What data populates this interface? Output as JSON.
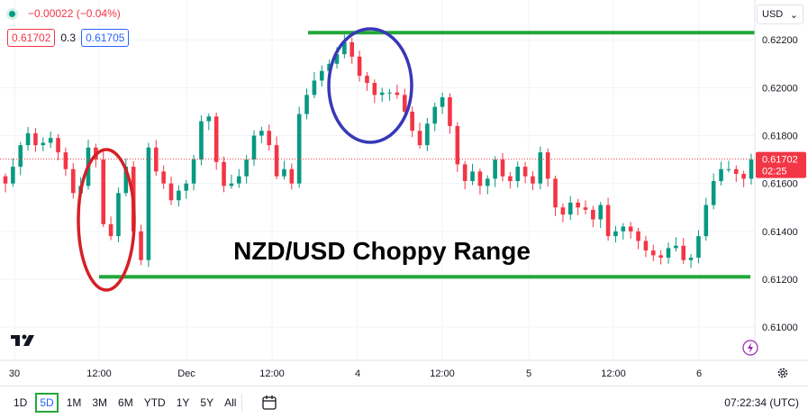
{
  "header": {
    "change": "−0.00022 (−0.04%)"
  },
  "prices": {
    "bid": "0.61702",
    "spread": "0.3",
    "ask": "0.61705"
  },
  "currency_select": {
    "value": "USD"
  },
  "price_tag": {
    "price": "0.61702",
    "countdown": "02:25"
  },
  "annotation": {
    "title": "NZD/USD Choppy Range"
  },
  "range_buttons": [
    "1D",
    "5D",
    "1M",
    "3M",
    "6M",
    "YTD",
    "1Y",
    "5Y",
    "All"
  ],
  "active_range": "5D",
  "clock": "07:22:34 (UTC)",
  "colors": {
    "up": "#089981",
    "down": "#f23645",
    "range_line": "#22a838",
    "circle_low": "#d61f26",
    "circle_high": "#3838b8",
    "price_tag": "#f23645"
  },
  "chart_data": {
    "type": "candlestick",
    "pair": "NZD/USD",
    "y_ticks": [
      "0.62200",
      "0.62000",
      "0.61800",
      "0.61600",
      "0.61400",
      "0.61200",
      "0.61000"
    ],
    "ylim": [
      0.6088,
      0.6231
    ],
    "x_ticks": [
      "30",
      "12:00",
      "Dec",
      "12:00",
      "4",
      "12:00",
      "5",
      "12:00",
      "6"
    ],
    "current_price": 0.61702,
    "range_resistance": 0.6223,
    "range_support": 0.6121,
    "series": [
      {
        "name": "NZD/USD",
        "closes": [
          0.616,
          0.6167,
          0.6176,
          0.6181,
          0.6176,
          0.6177,
          0.6179,
          0.6173,
          0.6166,
          0.6156,
          0.6159,
          0.6175,
          0.617,
          0.6143,
          0.6138,
          0.6156,
          0.6167,
          0.614,
          0.6128,
          0.6175,
          0.6165,
          0.616,
          0.6153,
          0.6157,
          0.616,
          0.617,
          0.6186,
          0.6188,
          0.6169,
          0.6159,
          0.616,
          0.6163,
          0.617,
          0.618,
          0.6182,
          0.6176,
          0.6163,
          0.6166,
          0.616,
          0.6189,
          0.6197,
          0.6203,
          0.6207,
          0.621,
          0.6214,
          0.6219,
          0.6213,
          0.6205,
          0.6202,
          0.6197,
          0.6198,
          0.6198,
          0.6197,
          0.619,
          0.6182,
          0.6176,
          0.6185,
          0.6192,
          0.6196,
          0.6184,
          0.6168,
          0.6161,
          0.6165,
          0.6159,
          0.6162,
          0.617,
          0.6163,
          0.6161,
          0.6167,
          0.6163,
          0.616,
          0.6173,
          0.6162,
          0.615,
          0.6147,
          0.6152,
          0.615,
          0.6149,
          0.6145,
          0.6151,
          0.6138,
          0.614,
          0.6142,
          0.614,
          0.6136,
          0.6132,
          0.613,
          0.6129,
          0.6133,
          0.6134,
          0.6128,
          0.6129,
          0.6138,
          0.6151,
          0.6161,
          0.6166,
          0.6166,
          0.6164,
          0.6162,
          0.617
        ]
      }
    ]
  }
}
